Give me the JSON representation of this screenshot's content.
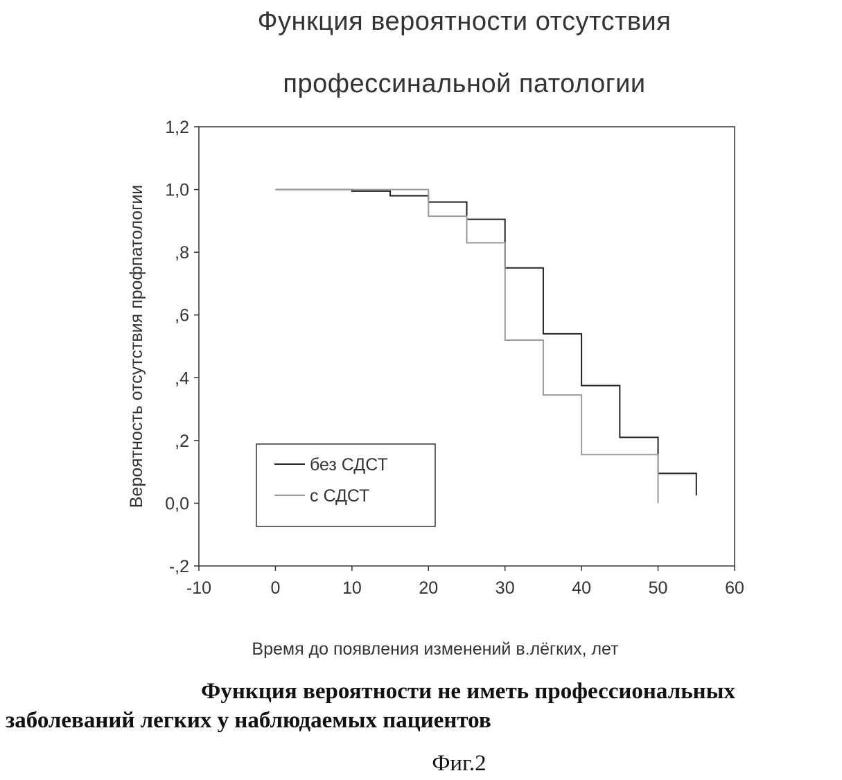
{
  "chart_data": {
    "type": "line",
    "title_line1": "Функция вероятности отсутствия",
    "title_line2": "профессинальной патологии",
    "xlabel": "Время до появления изменений в.лёгких, лет",
    "ylabel": "Вероятность отсутствия профпатологии",
    "xlim": [
      -10,
      60
    ],
    "ylim": [
      -0.2,
      1.2
    ],
    "x_ticks": [
      -10,
      0,
      10,
      20,
      30,
      40,
      50,
      60
    ],
    "x_tick_labels": [
      "-10",
      "0",
      "10",
      "20",
      "30",
      "40",
      "50",
      "60"
    ],
    "y_ticks": [
      -0.2,
      0,
      0.2,
      0.4,
      0.6,
      0.8,
      1.0,
      1.2
    ],
    "y_tick_labels": [
      "-,2",
      "0,0",
      ",2",
      ",4",
      ",6",
      ",8",
      "1,0",
      "1,2"
    ],
    "grid": false,
    "legend_position": "bottom-left",
    "step": true,
    "series": [
      {
        "name": "без СДСТ",
        "color": "#222222",
        "x": [
          0,
          10,
          15,
          20,
          25,
          30,
          35,
          40,
          45,
          50,
          55
        ],
        "y": [
          1.0,
          0.995,
          0.98,
          0.96,
          0.905,
          0.75,
          0.54,
          0.375,
          0.21,
          0.095,
          0.025
        ]
      },
      {
        "name": "с СДСТ",
        "color": "#9a9a9a",
        "x": [
          0,
          20,
          25,
          30,
          35,
          40,
          50
        ],
        "y": [
          1.0,
          0.915,
          0.83,
          0.52,
          0.345,
          0.155,
          0.0
        ]
      }
    ]
  },
  "caption": {
    "line1": "Функция вероятности не иметь профессиональных",
    "line2": "заболеваний легких у наблюдаемых пациентов"
  },
  "figure_label": "Фиг.2"
}
